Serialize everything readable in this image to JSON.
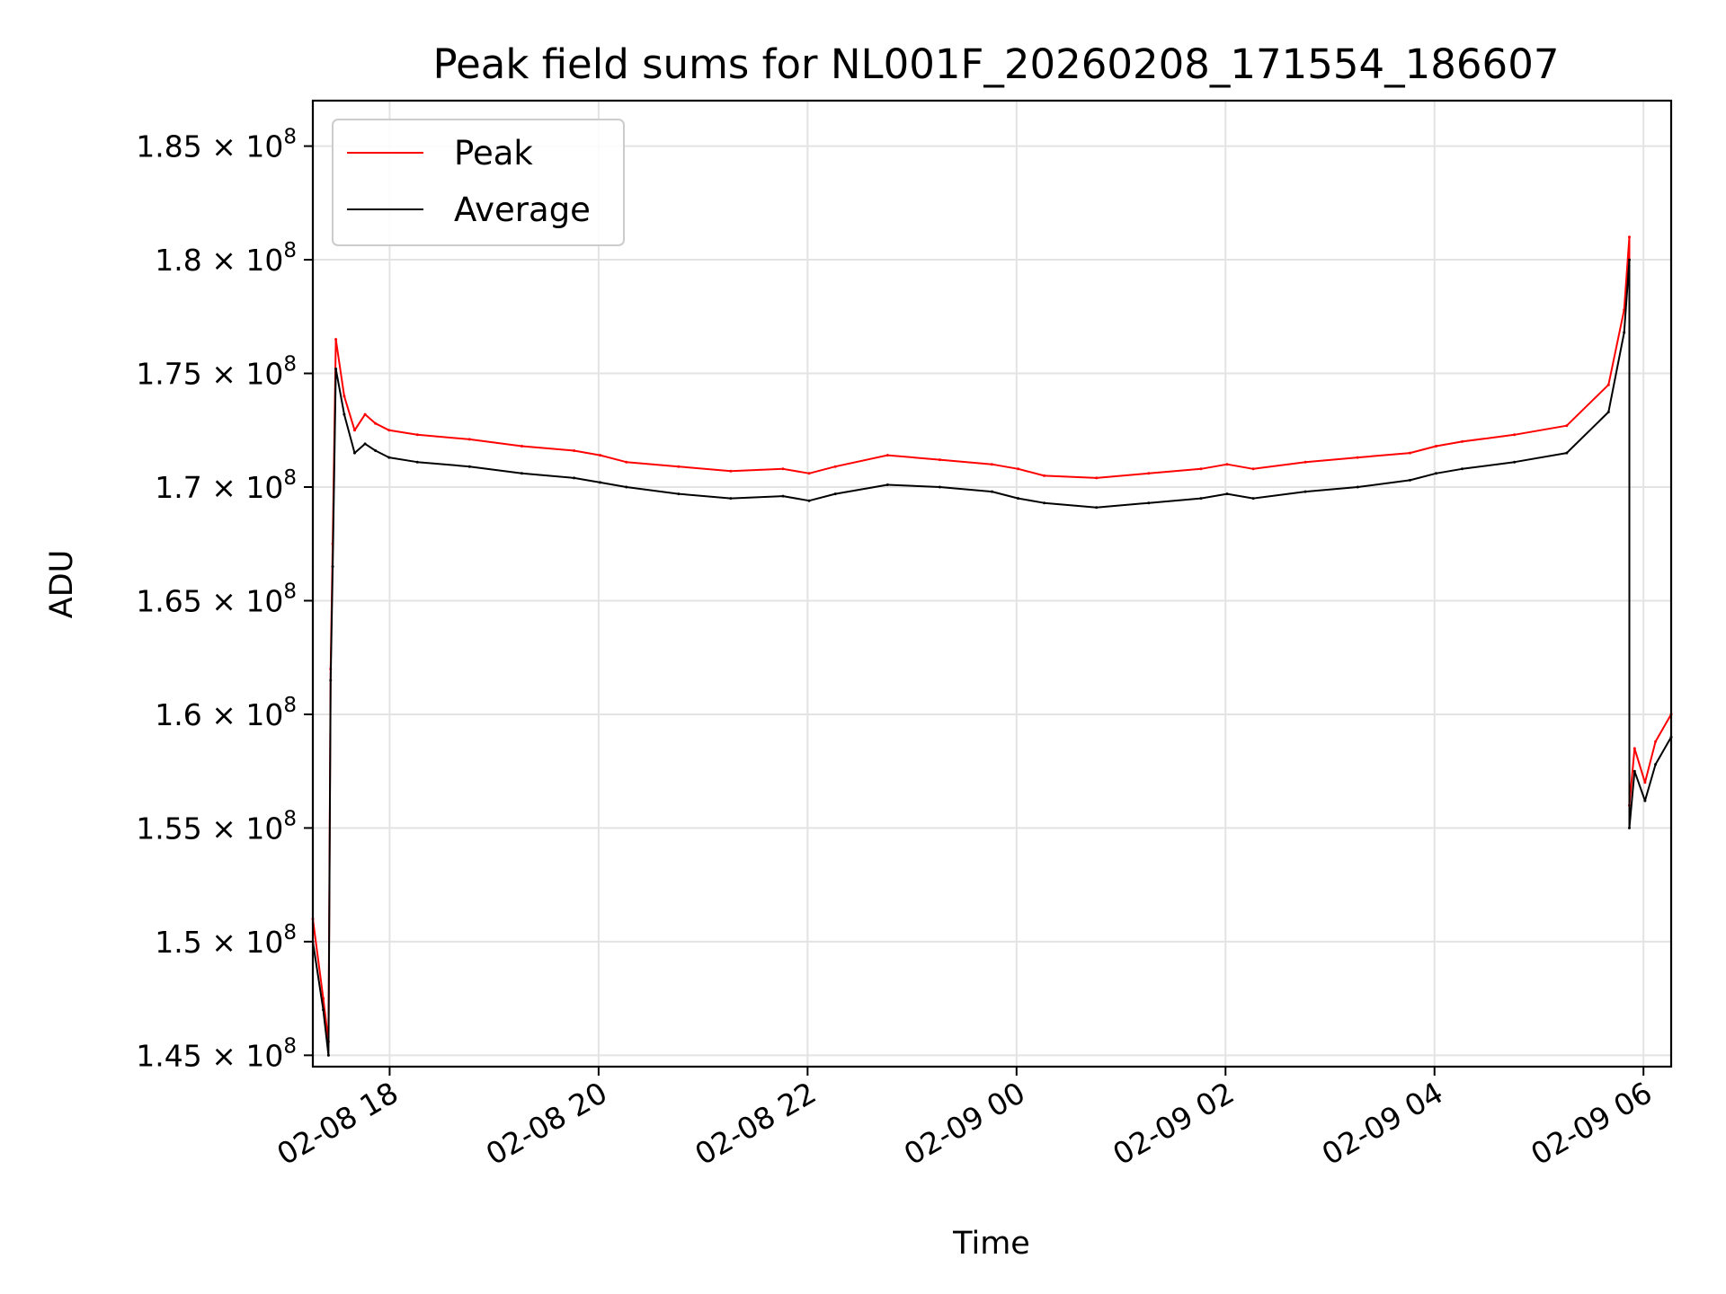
{
  "chart_data": {
    "type": "line",
    "title": "Peak field sums for NL001F_20260208_171554_186607",
    "xlabel": "Time",
    "ylabel": "ADU",
    "x_unit": "hours since 02-08 17:15:54",
    "xlim": [
      0,
      13.0
    ],
    "ylim": [
      144500000,
      187000000
    ],
    "grid": true,
    "legend_position": "top-left",
    "x_ticks": [
      {
        "value": 0.735,
        "label": "02-08 18"
      },
      {
        "value": 2.735,
        "label": "02-08 20"
      },
      {
        "value": 4.735,
        "label": "02-08 22"
      },
      {
        "value": 6.735,
        "label": "02-09 00"
      },
      {
        "value": 8.735,
        "label": "02-09 02"
      },
      {
        "value": 10.735,
        "label": "02-09 04"
      },
      {
        "value": 12.735,
        "label": "02-09 06"
      }
    ],
    "y_ticks": [
      {
        "value": 145000000,
        "mantissa": "1.45",
        "label": "1.45 × 10^8"
      },
      {
        "value": 150000000,
        "mantissa": "1.5",
        "label": "1.5 × 10^8"
      },
      {
        "value": 155000000,
        "mantissa": "1.55",
        "label": "1.55 × 10^8"
      },
      {
        "value": 160000000,
        "mantissa": "1.6",
        "label": "1.6 × 10^8"
      },
      {
        "value": 165000000,
        "mantissa": "1.65",
        "label": "1.65 × 10^8"
      },
      {
        "value": 170000000,
        "mantissa": "1.7",
        "label": "1.7 × 10^8"
      },
      {
        "value": 175000000,
        "mantissa": "1.75",
        "label": "1.75 × 10^8"
      },
      {
        "value": 180000000,
        "mantissa": "1.8",
        "label": "1.8 × 10^8"
      },
      {
        "value": 185000000,
        "mantissa": "1.85",
        "label": "1.85 × 10^8"
      }
    ],
    "series": [
      {
        "name": "Peak",
        "color": "#ff0000",
        "x": [
          0,
          0.1,
          0.15,
          0.17,
          0.19,
          0.22,
          0.3,
          0.4,
          0.5,
          0.6,
          0.73,
          1.0,
          1.5,
          2.0,
          2.5,
          2.75,
          3.0,
          3.5,
          4.0,
          4.5,
          4.75,
          5.0,
          5.5,
          6.0,
          6.5,
          6.75,
          7.0,
          7.5,
          8.0,
          8.5,
          8.75,
          9.0,
          9.5,
          10.0,
          10.5,
          10.75,
          11.0,
          11.5,
          12.0,
          12.4,
          12.55,
          12.6,
          12.6,
          12.65,
          12.75,
          12.85,
          13.0
        ],
        "values": [
          151000000,
          147500000,
          145600000,
          162000000,
          167500000,
          176500000,
          174000000,
          172500000,
          173200000,
          172800000,
          172500000,
          172300000,
          172100000,
          171800000,
          171600000,
          171400000,
          171100000,
          170900000,
          170700000,
          170800000,
          170600000,
          170900000,
          171400000,
          171200000,
          171000000,
          170800000,
          170500000,
          170400000,
          170600000,
          170800000,
          171000000,
          170800000,
          171100000,
          171300000,
          171500000,
          171800000,
          172000000,
          172300000,
          172700000,
          174500000,
          177800000,
          181000000,
          156000000,
          158500000,
          157000000,
          158800000,
          160000000
        ]
      },
      {
        "name": "Average",
        "color": "#000000",
        "x": [
          0,
          0.1,
          0.15,
          0.17,
          0.19,
          0.22,
          0.3,
          0.4,
          0.5,
          0.6,
          0.73,
          1.0,
          1.5,
          2.0,
          2.5,
          2.75,
          3.0,
          3.5,
          4.0,
          4.5,
          4.75,
          5.0,
          5.5,
          6.0,
          6.5,
          6.75,
          7.0,
          7.5,
          8.0,
          8.5,
          8.75,
          9.0,
          9.5,
          10.0,
          10.5,
          10.75,
          11.0,
          11.5,
          12.0,
          12.4,
          12.55,
          12.6,
          12.6,
          12.65,
          12.75,
          12.85,
          13.0
        ],
        "values": [
          150000000,
          147000000,
          145000000,
          161500000,
          166500000,
          175200000,
          173200000,
          171500000,
          171900000,
          171600000,
          171300000,
          171100000,
          170900000,
          170600000,
          170400000,
          170200000,
          170000000,
          169700000,
          169500000,
          169600000,
          169400000,
          169700000,
          170100000,
          170000000,
          169800000,
          169500000,
          169300000,
          169100000,
          169300000,
          169500000,
          169700000,
          169500000,
          169800000,
          170000000,
          170300000,
          170600000,
          170800000,
          171100000,
          171500000,
          173300000,
          176800000,
          180000000,
          155000000,
          157500000,
          156200000,
          157800000,
          159000000
        ]
      }
    ]
  }
}
